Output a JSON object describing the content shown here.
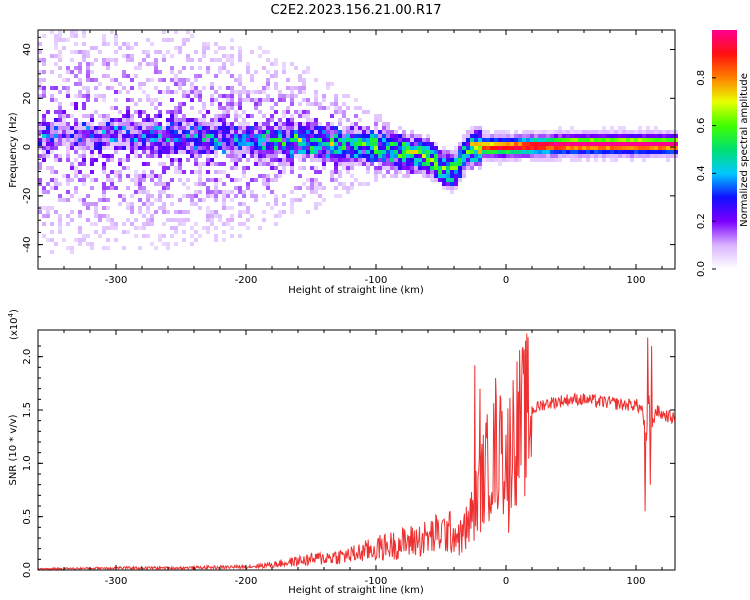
{
  "title": "C2E2.2023.156.21.00.R17",
  "chart_data": [
    {
      "type": "heatmap",
      "xlabel": "Height of straight line (km)",
      "ylabel": "Frequency (Hz)",
      "xlim": [
        -360,
        130
      ],
      "ylim": [
        -50,
        48
      ],
      "x_ticks": [
        -300,
        -200,
        -100,
        0,
        100
      ],
      "y_ticks": [
        -40,
        -20,
        0,
        20,
        40
      ],
      "colorbar": {
        "label": "Normalized spectral amplitude",
        "range": [
          0,
          1
        ],
        "ticks": [
          0.0,
          0.2,
          0.4,
          0.6,
          0.8
        ],
        "colormap": [
          "#ffffff",
          "#d9b3ff",
          "#7a00ff",
          "#1010ff",
          "#00c8ff",
          "#00e070",
          "#40ff00",
          "#e8ff00",
          "#ff8000",
          "#ff1010",
          "#ff0090"
        ]
      },
      "ridge_frequency": {
        "x": [
          -360,
          -300,
          -250,
          -200,
          -150,
          -100,
          -80,
          -60,
          -50,
          -40,
          -30,
          -20,
          0,
          50,
          100,
          130
        ],
        "y": [
          4,
          5,
          4,
          3,
          2,
          0,
          -2,
          -4,
          -8,
          -10,
          -2,
          0,
          0,
          1,
          1,
          1
        ]
      },
      "ridge_amplitude": {
        "x": [
          -360,
          -300,
          -250,
          -200,
          -150,
          -100,
          -80,
          -60,
          -50,
          -40,
          -30,
          -20,
          0,
          50,
          100,
          130
        ],
        "y": [
          0.15,
          0.2,
          0.25,
          0.3,
          0.4,
          0.45,
          0.5,
          0.55,
          0.55,
          0.5,
          0.6,
          0.75,
          0.8,
          0.9,
          0.95,
          0.9
        ]
      },
      "spread_hz": {
        "x": [
          -360,
          -300,
          -250,
          -200,
          -150,
          -100,
          -80,
          -60,
          -40,
          -20,
          0,
          130
        ],
        "y": [
          48,
          48,
          45,
          40,
          30,
          14,
          10,
          8,
          7,
          4,
          3,
          3
        ]
      }
    },
    {
      "type": "line",
      "xlabel": "Height of straight line (km)",
      "ylabel": "SNR (10 * v/v)",
      "y_multiplier_label": "(x10",
      "y_multiplier_exp": "4",
      "y_multiplier_close": ")",
      "xlim": [
        -360,
        130
      ],
      "ylim": [
        0,
        2.25
      ],
      "x_ticks": [
        -300,
        -200,
        -100,
        0,
        100
      ],
      "y_ticks": [
        "0.0",
        "0.5",
        "1.0",
        "1.5",
        "2.0"
      ],
      "line_color": "#ee3030",
      "series": [
        {
          "name": "",
          "x": [
            -360,
            -300,
            -250,
            -200,
            -180,
            -150,
            -120,
            -100,
            -80,
            -60,
            -50,
            -40,
            -35,
            -30,
            -25,
            -20,
            -15,
            -10,
            -5,
            0,
            5,
            10,
            20,
            30,
            40,
            50,
            60,
            70,
            80,
            90,
            100,
            105,
            108,
            110,
            112,
            115,
            120,
            130
          ],
          "y": [
            0.01,
            0.02,
            0.02,
            0.03,
            0.05,
            0.1,
            0.14,
            0.2,
            0.25,
            0.3,
            0.35,
            0.35,
            0.3,
            0.4,
            0.55,
            0.75,
            0.95,
            1.05,
            1.1,
            1.05,
            1.25,
            1.35,
            1.5,
            1.56,
            1.58,
            1.6,
            1.6,
            1.58,
            1.57,
            1.55,
            1.55,
            1.5,
            1.2,
            1.6,
            1.3,
            1.5,
            1.46,
            1.42
          ]
        }
      ],
      "spikes": [
        {
          "x": -24,
          "y": 1.92
        },
        {
          "x": -20,
          "y": 1.7
        },
        {
          "x": -8,
          "y": 1.8
        },
        {
          "x": -4,
          "y": 1.6
        },
        {
          "x": 2,
          "y": 0.35
        },
        {
          "x": 107,
          "y": 0.55
        },
        {
          "x": 109,
          "y": 2.18
        },
        {
          "x": 111,
          "y": 0.8
        },
        {
          "x": 112,
          "y": 2.1
        }
      ]
    }
  ]
}
